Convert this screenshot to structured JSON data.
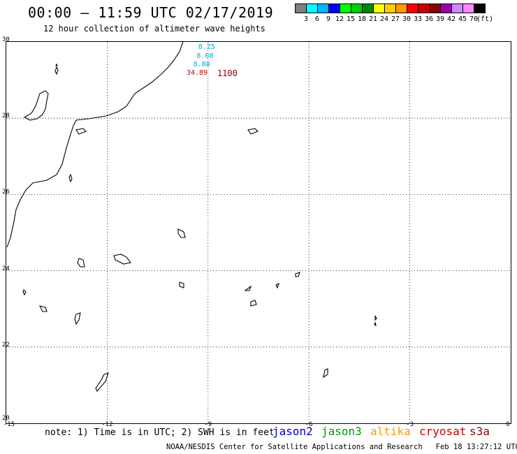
{
  "header": {
    "title": "00:00 — 11:59 UTC 02/17/2019",
    "subtitle": "12 hour collection of altimeter wave heights"
  },
  "scale": {
    "unit": "(ft)",
    "colors": [
      "#808080",
      "#00ffff",
      "#00b4ff",
      "#0000ff",
      "#00ff00",
      "#00cc00",
      "#008800",
      "#ffff00",
      "#ffcc00",
      "#ff9900",
      "#ff0000",
      "#cc0000",
      "#880000",
      "#9900aa",
      "#cc88ff",
      "#ff88ff",
      "#000000"
    ],
    "labels": [
      "3",
      "6",
      "9",
      "12",
      "15",
      "18",
      "21",
      "24",
      "27",
      "30",
      "33",
      "36",
      "39",
      "42",
      "45",
      "70"
    ]
  },
  "axes": {
    "y_ticks": [
      "30",
      "28",
      "26",
      "24",
      "22",
      "20"
    ],
    "x_ticks": [
      "-15",
      "-12",
      "-9",
      "-6",
      "-3",
      "0"
    ],
    "lat_range": [
      20,
      30
    ],
    "lon_range": [
      -15,
      0
    ]
  },
  "measurements": {
    "values": [
      {
        "text": "8.25",
        "color": "#00aacc",
        "lon": -9.0,
        "lat": 29.85
      },
      {
        "text": "8.08",
        "color": "#00aacc",
        "lon": -9.05,
        "lat": 29.62
      },
      {
        "text": "8.88",
        "color": "#00aacc",
        "lon": -9.15,
        "lat": 29.4
      },
      {
        "text": "34.89",
        "color": "#cc0000",
        "lon": -9.35,
        "lat": 29.17
      }
    ],
    "time_label": {
      "text": "1100",
      "color": "#880000"
    }
  },
  "note": "note: 1) Time is in UTC; 2) SWH is in feet",
  "satellites": [
    {
      "name": "jason2",
      "color": "#0000cc"
    },
    {
      "name": "jason3",
      "color": "#009900"
    },
    {
      "name": "altika",
      "color": "#ff9900"
    },
    {
      "name": "cryosat",
      "color": "#cc0000"
    },
    {
      "name": "s3a",
      "color": "#880000"
    }
  ],
  "footer": {
    "credit": "NOAA/NESDIS Center for Satellite Applications and Research",
    "timestamp": "Feb 18 13:27:12 UTC 2019"
  }
}
